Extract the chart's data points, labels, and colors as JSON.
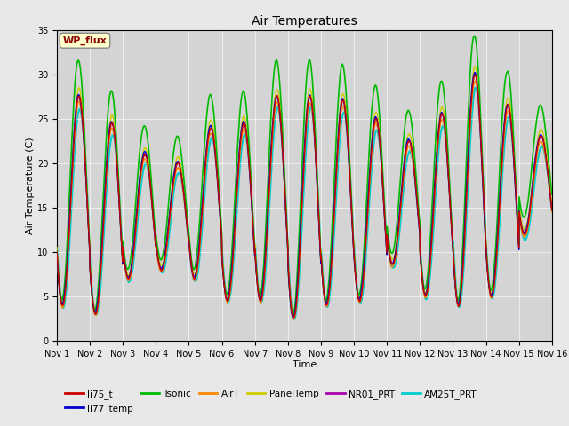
{
  "title": "Air Temperatures",
  "xlabel": "Time",
  "ylabel": "Air Temperature (C)",
  "ylim": [
    0,
    35
  ],
  "yticks": [
    0,
    5,
    10,
    15,
    20,
    25,
    30,
    35
  ],
  "background_color": "#e8e8e8",
  "plot_bg_color": "#d4d4d4",
  "series": [
    {
      "name": "li75_t",
      "color": "#cc0000",
      "lw": 1.0,
      "zorder": 7
    },
    {
      "name": "li77_temp",
      "color": "#0000cc",
      "lw": 1.0,
      "zorder": 6
    },
    {
      "name": "Tsonic",
      "color": "#00bb00",
      "lw": 1.2,
      "zorder": 5
    },
    {
      "name": "AirT",
      "color": "#ff8800",
      "lw": 1.0,
      "zorder": 4
    },
    {
      "name": "PanelTemp",
      "color": "#cccc00",
      "lw": 1.0,
      "zorder": 3
    },
    {
      "name": "NR01_PRT",
      "color": "#aa00aa",
      "lw": 1.0,
      "zorder": 2
    },
    {
      "name": "AM25T_PRT",
      "color": "#00cccc",
      "lw": 1.5,
      "zorder": 1
    }
  ],
  "annotation_text": "WP_flux",
  "n_days": 15,
  "pts_per_day": 144,
  "day_peaks": [
    27.5,
    24.5,
    21.0,
    20.0,
    24.0,
    24.5,
    27.5,
    27.5,
    27.0,
    25.0,
    22.5,
    25.5,
    30.0,
    26.5,
    23.0
  ],
  "day_mins": [
    4.0,
    3.0,
    7.0,
    8.0,
    7.0,
    4.5,
    4.5,
    2.5,
    4.0,
    4.5,
    8.5,
    5.0,
    4.0,
    5.0,
    12.0
  ],
  "grid_color": "#ffffff",
  "grid_lw": 0.8,
  "grid_alpha": 0.6
}
